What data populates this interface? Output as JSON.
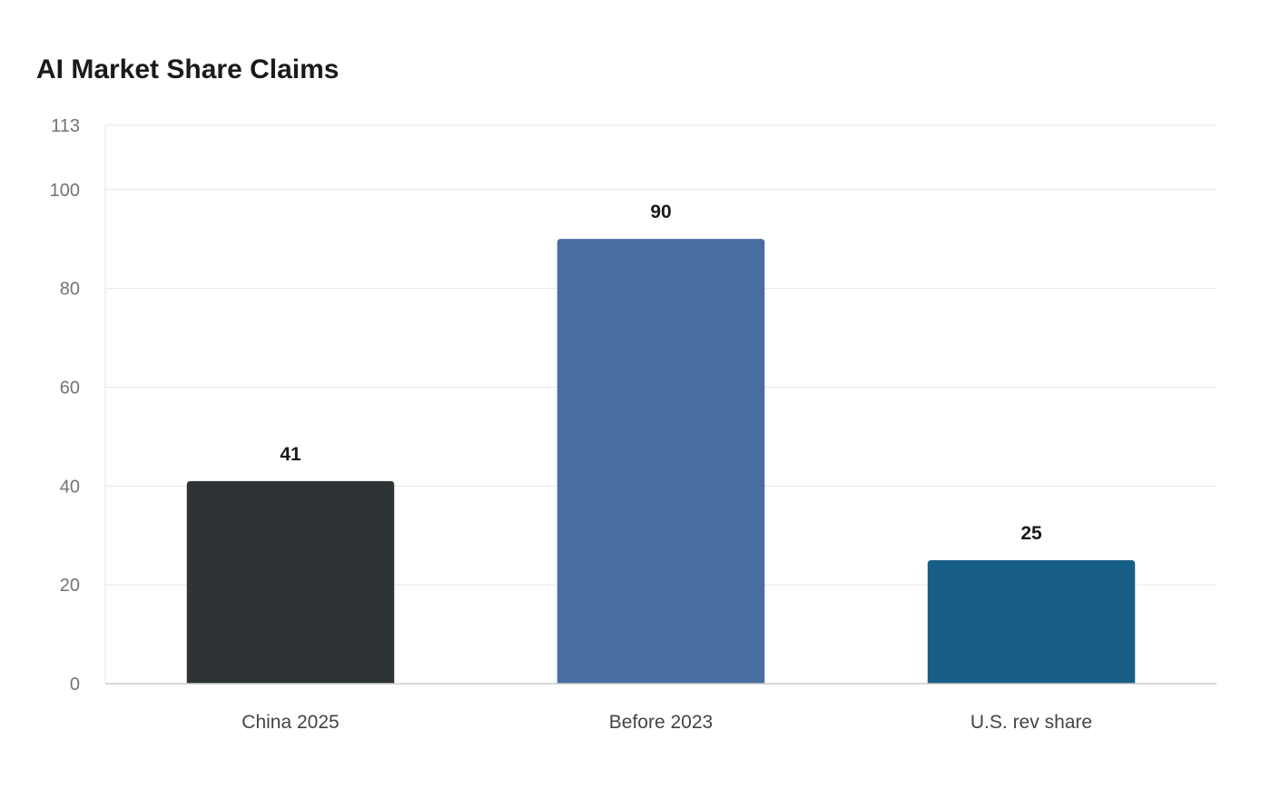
{
  "chart_data": {
    "type": "bar",
    "title": "AI Market Share Claims",
    "xlabel": "",
    "ylabel": "",
    "categories": [
      "China 2025",
      "Before 2023",
      "U.S. rev share"
    ],
    "values": [
      41,
      90,
      25
    ],
    "colors": [
      "#2e3436",
      "#4a6da1",
      "#185f88"
    ],
    "y_ticks": [
      0,
      20,
      40,
      60,
      80,
      100,
      113
    ],
    "ylim": [
      0,
      113
    ],
    "grid": true,
    "legend": "none"
  }
}
